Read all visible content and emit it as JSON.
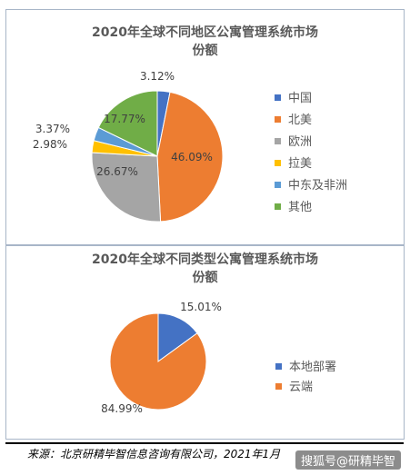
{
  "chart_data": [
    {
      "type": "pie",
      "title_line1": "2020年全球不同地区公寓管理系统市场",
      "title_line2": "份额",
      "categories": [
        "中国",
        "北美",
        "欧洲",
        "拉美",
        "中东及非洲",
        "其他"
      ],
      "values": [
        3.12,
        46.09,
        26.67,
        2.98,
        3.37,
        17.77
      ],
      "labels": [
        "3.12%",
        "46.09%",
        "26.67%",
        "2.98%",
        "3.37%",
        "17.77%"
      ],
      "colors": [
        "#4472c4",
        "#ed7d31",
        "#a5a5a5",
        "#ffc000",
        "#5b9bd5",
        "#70ad47"
      ],
      "legend_position": "right"
    },
    {
      "type": "pie",
      "title_line1": "2020年全球不同类型公寓管理系统市场",
      "title_line2": "份额",
      "categories": [
        "本地部署",
        "云端"
      ],
      "values": [
        15.01,
        84.99
      ],
      "labels": [
        "15.01%",
        "84.99%"
      ],
      "colors": [
        "#4472c4",
        "#ed7d31"
      ],
      "legend_position": "right"
    }
  ],
  "source": "来源：北京研精毕智信息咨询有限公司，2021年1月",
  "watermark": "搜狐号@研精毕智"
}
